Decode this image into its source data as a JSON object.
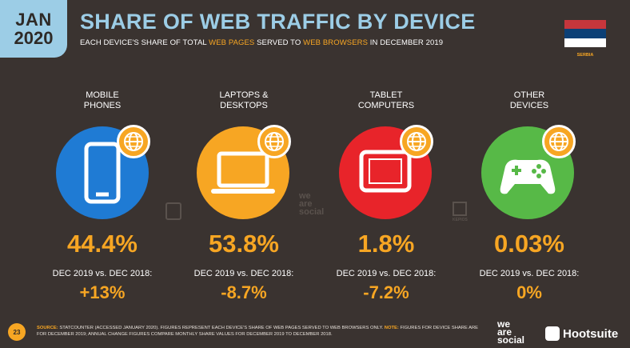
{
  "badge": {
    "month": "JAN",
    "year": "2020"
  },
  "title": "SHARE OF WEB TRAFFIC BY DEVICE",
  "subtitle": {
    "part1": "EACH DEVICE'S SHARE OF TOTAL ",
    "hl1": "WEB PAGES",
    "part2": " SERVED TO ",
    "hl2": "WEB BROWSERS",
    "part3": " IN DECEMBER 2019"
  },
  "country": "SERBIA",
  "flag_colors": [
    "#c6363c",
    "#0c4076",
    "#ffffff"
  ],
  "devices": [
    {
      "label1": "MOBILE",
      "label2": "PHONES",
      "color": "#1f7bd4",
      "icon": "smartphone-icon",
      "share": "44.4%",
      "cmp": "DEC 2019 vs. DEC 2018:",
      "change": "+13%"
    },
    {
      "label1": "LAPTOPS &",
      "label2": "DESKTOPS",
      "color": "#f7a623",
      "icon": "laptop-icon",
      "share": "53.8%",
      "cmp": "DEC 2019 vs. DEC 2018:",
      "change": "-8.7%"
    },
    {
      "label1": "TABLET",
      "label2": "COMPUTERS",
      "color": "#e8242a",
      "icon": "tablet-icon",
      "share": "1.8%",
      "cmp": "DEC 2019 vs. DEC 2018:",
      "change": "-7.2%"
    },
    {
      "label1": "OTHER",
      "label2": "DEVICES",
      "color": "#57b947",
      "icon": "gamepad-icon",
      "share": "0.03%",
      "cmp": "DEC 2019 vs. DEC 2018:",
      "change": "0%"
    }
  ],
  "footer": {
    "page": "23",
    "source_label": "SOURCE:",
    "source_text": " STATCOUNTER (ACCESSED JANUARY 2020). FIGURES REPRESENT EACH DEVICE'S SHARE OF WEB PAGES SERVED TO WEB BROWSERS ONLY. ",
    "note_label": "NOTE:",
    "note_text": " FIGURES FOR DEVICE SHARE ARE FOR DECEMBER 2019; ANNUAL CHANGE FIGURES COMPARE MONTHLY SHARE VALUES FOR DECEMBER 2019 TO DECEMBER 2018."
  },
  "brand": {
    "we": "we",
    "are": "are",
    "social": "social",
    "hootsuite": "Hootsuite",
    "watermark_kepios": "KEPIOS"
  }
}
